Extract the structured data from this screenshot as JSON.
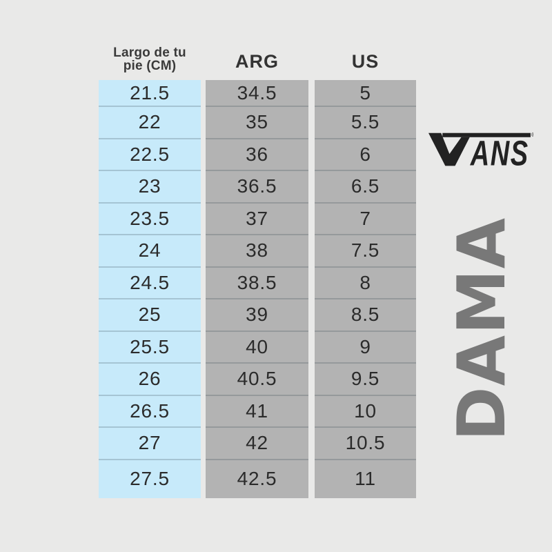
{
  "page": {
    "background_color": "#e9e9e8"
  },
  "table": {
    "header": {
      "col1_line1": "Largo de tu",
      "col1_line2": "pie (CM)",
      "col2": "ARG",
      "col3": "US"
    },
    "colors": {
      "cm_column": "#c7eafa",
      "size_columns": "#b3b3b3",
      "text": "#2b2b2b"
    },
    "rows": [
      {
        "cm": "21.5",
        "arg": "34.5",
        "us": "5"
      },
      {
        "cm": "22",
        "arg": "35",
        "us": "5.5"
      },
      {
        "cm": "22.5",
        "arg": "36",
        "us": "6"
      },
      {
        "cm": "23",
        "arg": "36.5",
        "us": "6.5"
      },
      {
        "cm": "23.5",
        "arg": "37",
        "us": "7"
      },
      {
        "cm": "24",
        "arg": "38",
        "us": "7.5"
      },
      {
        "cm": "24.5",
        "arg": "38.5",
        "us": "8"
      },
      {
        "cm": "25",
        "arg": "39",
        "us": "8.5"
      },
      {
        "cm": "25.5",
        "arg": "40",
        "us": "9"
      },
      {
        "cm": "26",
        "arg": "40.5",
        "us": "9.5"
      },
      {
        "cm": "26.5",
        "arg": "41",
        "us": "10"
      },
      {
        "cm": "27",
        "arg": "42",
        "us": "10.5"
      },
      {
        "cm": "27.5",
        "arg": "42.5",
        "us": "11"
      }
    ]
  },
  "branding": {
    "logo_text": "VANS",
    "logo_letters_after_v": "ANS",
    "registered_mark": "®",
    "logo_color": "#222222",
    "category_label": "DAMA",
    "category_color": "#787878"
  }
}
